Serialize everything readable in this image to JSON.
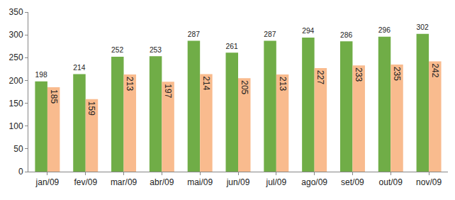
{
  "chart_data": {
    "type": "bar",
    "categories": [
      "jan/09",
      "fev/09",
      "mar/09",
      "abr/09",
      "mai/09",
      "jun/09",
      "jul/09",
      "ago/09",
      "set/09",
      "out/09",
      "nov/09"
    ],
    "series": [
      {
        "color": "#70ad47",
        "values": [
          198,
          214,
          252,
          253,
          287,
          261,
          287,
          294,
          286,
          296,
          302
        ]
      },
      {
        "color": "#f9bb8e",
        "values": [
          185,
          159,
          213,
          197,
          214,
          205,
          213,
          227,
          233,
          235,
          242
        ]
      }
    ],
    "ylim": [
      0,
      350
    ],
    "yticks": [
      0,
      50,
      100,
      150,
      200,
      250,
      300,
      350
    ],
    "grid": false,
    "data_labels": true
  }
}
